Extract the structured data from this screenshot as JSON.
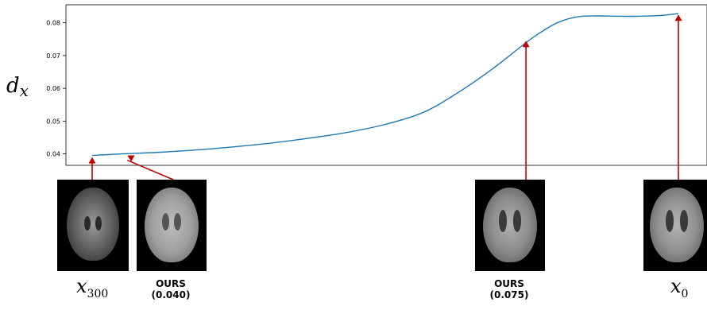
{
  "chart_data": {
    "type": "line",
    "ylabel_var": "d",
    "ylabel_sub": "x",
    "ylim": [
      0.0365,
      0.0855
    ],
    "yticks": [
      "0.04",
      "0.05",
      "0.06",
      "0.07",
      "0.08"
    ],
    "ytick_values": [
      0.04,
      0.05,
      0.06,
      0.07,
      0.08
    ],
    "xlim": [
      300,
      0
    ],
    "grid": false,
    "series": [
      {
        "color": "#1f77b4",
        "x": [
          300,
          285,
          265,
          240,
          210,
          190,
          170,
          150,
          130,
          112,
          95,
          80,
          72,
          62,
          52,
          42,
          30,
          20,
          10,
          0
        ],
        "y": [
          0.0395,
          0.04,
          0.0405,
          0.0415,
          0.0432,
          0.0447,
          0.0465,
          0.049,
          0.0528,
          0.059,
          0.066,
          0.073,
          0.0765,
          0.08,
          0.0818,
          0.0821,
          0.082,
          0.082,
          0.0822,
          0.0828
        ]
      }
    ],
    "markers": [
      {
        "x": 300,
        "y": 0.0395,
        "name": "x300"
      },
      {
        "x": 282,
        "y": 0.04,
        "name": "ours-0040"
      },
      {
        "x": 78,
        "y": 0.075,
        "name": "ours-0075"
      },
      {
        "x": 0,
        "y": 0.083,
        "name": "x0"
      }
    ]
  },
  "labels": {
    "x300_var": "x",
    "x300_sub": "300",
    "ours1_line1": "OURS",
    "ours1_line2": "(0.040)",
    "ours2_line1": "OURS",
    "ours2_line2": "(0.075)",
    "x0_var": "x",
    "x0_sub": "0"
  },
  "colors": {
    "line": "#1f77b4",
    "arrow": "#c00000",
    "axes": "#000000"
  }
}
